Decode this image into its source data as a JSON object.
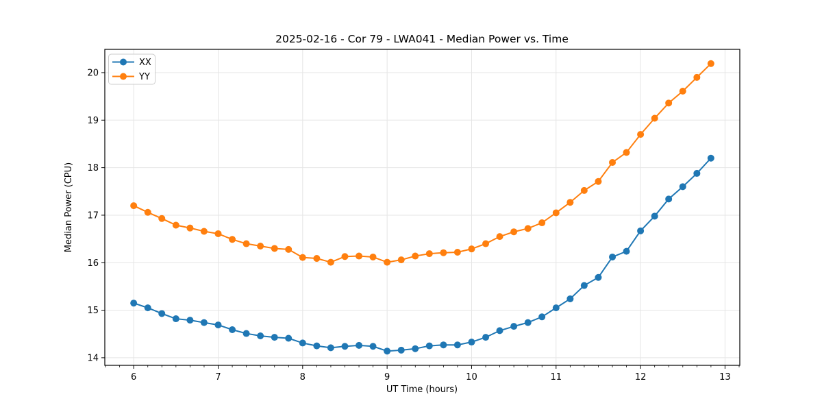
{
  "chart_data": {
    "type": "line",
    "title": "2025-02-16 - Cor 79 - LWA041 - Median Power vs. Time",
    "xlabel": "UT Time (hours)",
    "ylabel": "Median Power (CPU)",
    "x": [
      6.0,
      6.167,
      6.333,
      6.5,
      6.667,
      6.833,
      7.0,
      7.167,
      7.333,
      7.5,
      7.667,
      7.833,
      8.0,
      8.167,
      8.333,
      8.5,
      8.667,
      8.833,
      9.0,
      9.167,
      9.333,
      9.5,
      9.667,
      9.833,
      10.0,
      10.167,
      10.333,
      10.5,
      10.667,
      10.833,
      11.0,
      11.167,
      11.333,
      11.5,
      11.667,
      11.833,
      12.0,
      12.167,
      12.333,
      12.5,
      12.667,
      12.833
    ],
    "series": [
      {
        "name": "XX",
        "color": "#1f77b4",
        "values": [
          15.15,
          15.05,
          14.93,
          14.82,
          14.79,
          14.74,
          14.69,
          14.59,
          14.51,
          14.46,
          14.43,
          14.41,
          14.31,
          14.25,
          14.21,
          14.24,
          14.26,
          14.24,
          14.14,
          14.16,
          14.19,
          14.25,
          14.27,
          14.27,
          14.33,
          14.43,
          14.57,
          14.66,
          14.74,
          14.86,
          15.05,
          15.24,
          15.52,
          15.69,
          16.12,
          16.24,
          16.67,
          16.98,
          17.34,
          17.6,
          17.88,
          18.2
        ]
      },
      {
        "name": "YY",
        "color": "#ff7f0e",
        "values": [
          17.2,
          17.06,
          16.93,
          16.79,
          16.73,
          16.66,
          16.61,
          16.49,
          16.4,
          16.35,
          16.3,
          16.28,
          16.11,
          16.09,
          16.01,
          16.13,
          16.14,
          16.12,
          16.01,
          16.06,
          16.14,
          16.19,
          16.21,
          16.22,
          16.29,
          16.4,
          16.55,
          16.65,
          16.72,
          16.84,
          17.05,
          17.27,
          17.52,
          17.71,
          18.11,
          18.32,
          18.7,
          19.04,
          19.36,
          19.61,
          19.9,
          20.19
        ]
      }
    ],
    "xlim": [
      5.658,
      13.175
    ],
    "ylim": [
      13.84,
      20.49
    ],
    "x_ticks": [
      6,
      7,
      8,
      9,
      10,
      11,
      12,
      13
    ],
    "y_ticks": [
      14,
      15,
      16,
      17,
      18,
      19,
      20
    ],
    "x_minor_step": 0.16667,
    "grid": true,
    "grid_color": "#e5e5e5",
    "legend_position": "upper left",
    "marker": "circle",
    "line_width": 2,
    "marker_radius": 5
  }
}
